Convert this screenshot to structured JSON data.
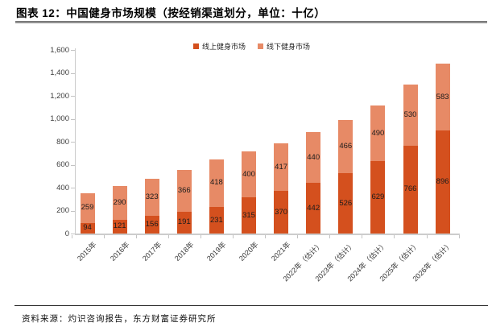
{
  "title": "图表 12：中国健身市场规模（按经销渠道划分，单位：十亿）",
  "footer": {
    "source": "资料来源：灼识咨询报告，东方财富证券研究所"
  },
  "chart_data": {
    "type": "bar",
    "stacked": true,
    "title": "中国健身市场规模（按经销渠道划分，单位：十亿）",
    "unit": "十亿",
    "categories": [
      "2015年",
      "2016年",
      "2017年",
      "2018年",
      "2019年",
      "2020年",
      "2021年",
      "2022年（估计）",
      "2023年（估计）",
      "2024年（估计）",
      "2025年（估计）",
      "2026年（估计）"
    ],
    "series": [
      {
        "name": "线上健身市场",
        "color": "#d4501e",
        "values": [
          94,
          121,
          156,
          191,
          231,
          315,
          370,
          442,
          526,
          629,
          766,
          896
        ]
      },
      {
        "name": "线下健身市场",
        "color": "#e78a66",
        "values": [
          259,
          290,
          323,
          366,
          418,
          400,
          417,
          440,
          466,
          490,
          530,
          583
        ]
      }
    ],
    "ylim": [
      0,
      1600
    ],
    "ytick_values": [
      0,
      200,
      400,
      600,
      800,
      1000,
      1200,
      1400,
      1600
    ],
    "ytick_labels": [
      "0",
      "200",
      "400",
      "600",
      "800",
      "1,000",
      "1,200",
      "1,400",
      "1,600"
    ],
    "legend_position": "top-center",
    "grid": false,
    "data_labels": true
  }
}
